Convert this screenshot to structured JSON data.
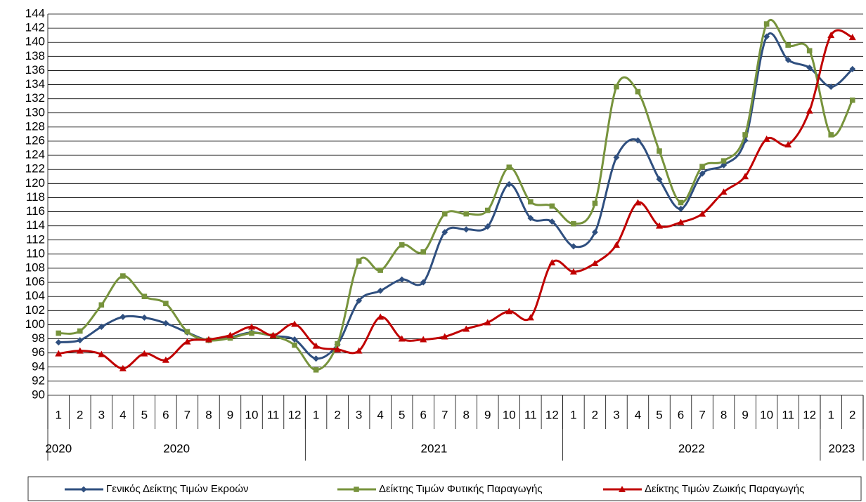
{
  "chart_data": {
    "type": "line",
    "categories": [
      "1",
      "2",
      "3",
      "4",
      "5",
      "6",
      "7",
      "8",
      "9",
      "10",
      "11",
      "12",
      "1",
      "2",
      "3",
      "4",
      "5",
      "6",
      "7",
      "8",
      "9",
      "10",
      "11",
      "12",
      "1",
      "2",
      "3",
      "4",
      "5",
      "6",
      "7",
      "8",
      "9",
      "10",
      "11",
      "12",
      "1",
      "2"
    ],
    "groups": [
      {
        "label": "2020",
        "size": 12
      },
      {
        "label": "2021",
        "size": 12
      },
      {
        "label": "2022",
        "size": 12
      },
      {
        "label": "2023",
        "size": 2
      }
    ],
    "corner_label": "2020",
    "ylim": [
      90,
      144
    ],
    "yticks": [
      90,
      92,
      94,
      96,
      98,
      100,
      102,
      104,
      106,
      108,
      110,
      112,
      114,
      116,
      118,
      120,
      122,
      124,
      126,
      128,
      130,
      132,
      134,
      136,
      138,
      140,
      142,
      144
    ],
    "grid": true,
    "legend": "bottom",
    "series": [
      {
        "name": "Γενικός Δείκτης Τιμών Εκροών",
        "color": "#2f4f7f",
        "marker": "diamond",
        "values": [
          97.5,
          97.8,
          99.7,
          101.1,
          101.0,
          100.2,
          98.9,
          97.8,
          98.2,
          98.9,
          98.4,
          97.9,
          95.2,
          97.2,
          103.4,
          104.8,
          106.4,
          106.0,
          113.1,
          113.5,
          113.9,
          119.9,
          115.1,
          114.6,
          111.1,
          113.1,
          123.7,
          126.1,
          120.6,
          116.4,
          121.4,
          122.6,
          126.1,
          140.8,
          137.5,
          136.4,
          133.7,
          136.2
        ]
      },
      {
        "name": "Δείκτης Τιμών Φυτικής Παραγωγής",
        "color": "#77933c",
        "marker": "square",
        "values": [
          98.8,
          99.1,
          102.8,
          106.9,
          104.0,
          103.0,
          99.0,
          97.8,
          98.1,
          98.8,
          98.4,
          97.1,
          93.6,
          97.3,
          109.0,
          107.7,
          111.3,
          110.3,
          115.7,
          115.7,
          116.2,
          122.3,
          117.4,
          116.8,
          114.3,
          117.2,
          133.7,
          133.0,
          124.6,
          117.3,
          122.4,
          123.2,
          126.9,
          142.6,
          139.6,
          138.8,
          126.9,
          131.8
        ]
      },
      {
        "name": "Δείκτης Τιμών Ζωικής Παραγωγής",
        "color": "#c00000",
        "marker": "triangle",
        "values": [
          95.9,
          96.3,
          95.8,
          93.8,
          95.9,
          95.0,
          97.6,
          97.9,
          98.5,
          99.7,
          98.5,
          100.1,
          97.0,
          96.5,
          96.3,
          101.1,
          98.0,
          97.9,
          98.3,
          99.4,
          100.3,
          101.9,
          101.0,
          108.8,
          107.5,
          108.7,
          111.3,
          117.3,
          114.0,
          114.5,
          115.7,
          118.8,
          121.0,
          126.3,
          125.5,
          130.3,
          141.0,
          140.7
        ]
      }
    ]
  }
}
